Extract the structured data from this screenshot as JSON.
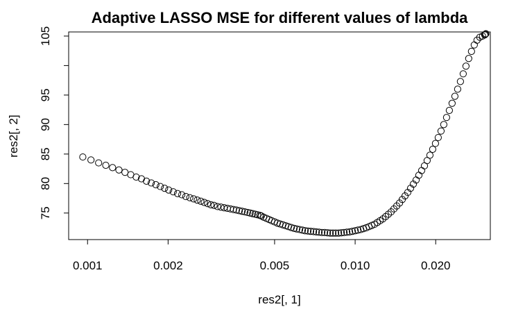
{
  "chart_data": {
    "type": "scatter",
    "title": "Adaptive LASSO MSE for different values of lambda",
    "xlabel": "res2[, 1]",
    "ylabel": "res2[, 2]",
    "x_scale": "log",
    "xlim": [
      0.00085,
      0.032
    ],
    "ylim": [
      70.5,
      105.7
    ],
    "x_ticks": [
      0.001,
      0.002,
      0.005,
      0.01,
      0.02
    ],
    "x_tick_labels": [
      "0.001",
      "0.002",
      "0.005",
      "0.010",
      "0.020"
    ],
    "y_ticks": [
      75,
      80,
      85,
      90,
      95,
      100,
      105
    ],
    "y_tick_labels": [
      "75",
      "80",
      "85",
      "90",
      "95",
      "",
      "105"
    ],
    "grid": false,
    "marker": "open-circle",
    "series": [
      {
        "x": [
          0.00096,
          0.00103,
          0.0011,
          0.00117,
          0.00124,
          0.00131,
          0.00138,
          0.00145,
          0.00152,
          0.00159,
          0.00166,
          0.00173,
          0.0018,
          0.00187,
          0.00194,
          0.00201,
          0.00209,
          0.00217,
          0.00225,
          0.00233,
          0.00241,
          0.00249,
          0.00257,
          0.00265,
          0.00273,
          0.00281,
          0.00289,
          0.00297,
          0.00306,
          0.00315,
          0.00324,
          0.00333,
          0.00342,
          0.00351,
          0.0036,
          0.00369,
          0.00378,
          0.00387,
          0.00396,
          0.00405,
          0.00414,
          0.00423,
          0.00432,
          0.00441,
          0.00446,
          0.00455,
          0.00466,
          0.00477,
          0.00488,
          0.005,
          0.00512,
          0.00524,
          0.00537,
          0.0055,
          0.00563,
          0.00577,
          0.00591,
          0.00605,
          0.0062,
          0.00635,
          0.0065,
          0.00666,
          0.00682,
          0.00699,
          0.00716,
          0.00733,
          0.00751,
          0.00769,
          0.00788,
          0.00807,
          0.00826,
          0.00846,
          0.00867,
          0.00888,
          0.00909,
          0.00931,
          0.00953,
          0.00976,
          0.01,
          0.01024,
          0.01049,
          0.01074,
          0.011,
          0.01127,
          0.01154,
          0.01182,
          0.0121,
          0.01239,
          0.01269,
          0.013,
          0.01331,
          0.01363,
          0.01396,
          0.0143,
          0.01465,
          0.015,
          0.01536,
          0.01573,
          0.01611,
          0.0165,
          0.0169,
          0.0173,
          0.01772,
          0.01815,
          0.01858,
          0.01903,
          0.01949,
          0.01996,
          0.02044,
          0.02094,
          0.02144,
          0.02196,
          0.02249,
          0.02303,
          0.02359,
          0.02416,
          0.02474,
          0.02534,
          0.02595,
          0.02657,
          0.02721,
          0.02787,
          0.02854,
          0.02923,
          0.02993,
          0.0305,
          0.03065,
          0.0308
        ],
        "y": [
          84.5,
          84.0,
          83.5,
          83.1,
          82.7,
          82.3,
          81.9,
          81.5,
          81.1,
          80.8,
          80.4,
          80.1,
          79.8,
          79.5,
          79.2,
          78.9,
          78.6,
          78.3,
          78.1,
          77.8,
          77.6,
          77.4,
          77.2,
          77.0,
          76.8,
          76.6,
          76.4,
          76.3,
          76.1,
          76.0,
          75.9,
          75.8,
          75.7,
          75.6,
          75.5,
          75.4,
          75.3,
          75.2,
          75.1,
          75.0,
          74.9,
          74.8,
          74.7,
          74.6,
          74.5,
          74.3,
          74.1,
          73.9,
          73.7,
          73.5,
          73.3,
          73.15,
          73.0,
          72.85,
          72.7,
          72.55,
          72.4,
          72.3,
          72.2,
          72.1,
          72.0,
          71.95,
          71.9,
          71.85,
          71.8,
          71.75,
          71.7,
          71.7,
          71.65,
          71.6,
          71.6,
          71.6,
          71.6,
          71.65,
          71.7,
          71.75,
          71.8,
          71.9,
          72.0,
          72.1,
          72.2,
          72.35,
          72.5,
          72.7,
          72.9,
          73.1,
          73.4,
          73.7,
          74.0,
          74.4,
          74.8,
          75.2,
          75.7,
          76.2,
          76.7,
          77.3,
          77.9,
          78.5,
          79.2,
          79.9,
          80.6,
          81.4,
          82.2,
          83.0,
          83.9,
          84.8,
          85.8,
          86.8,
          87.8,
          88.9,
          90.0,
          91.2,
          92.4,
          93.6,
          94.8,
          96.0,
          97.3,
          98.6,
          99.9,
          101.2,
          102.4,
          103.5,
          104.3,
          104.8,
          105.0,
          105.2,
          105.3,
          105.4
        ]
      }
    ]
  }
}
